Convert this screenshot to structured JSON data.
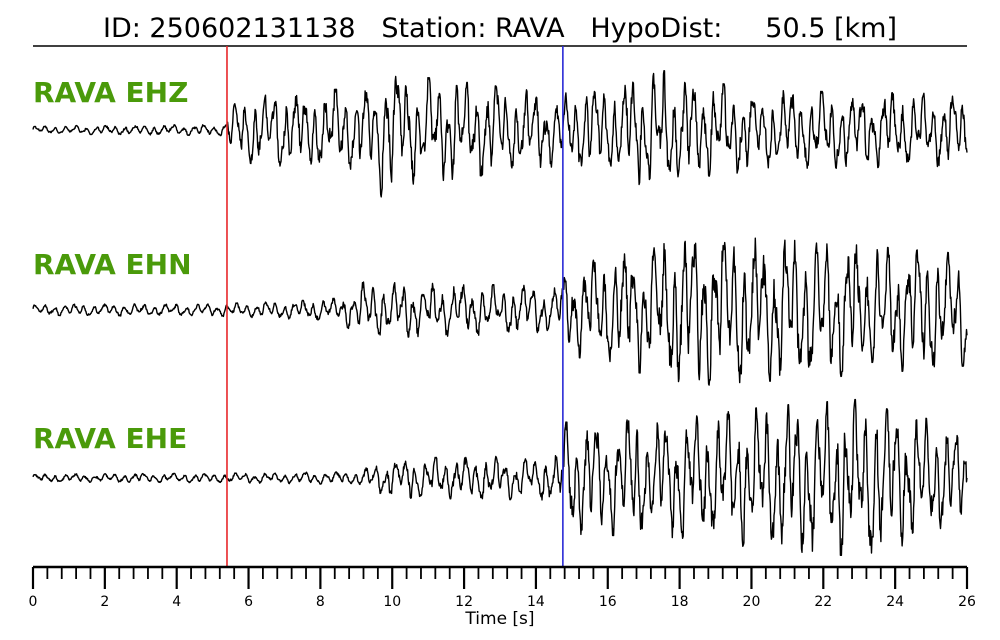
{
  "title": {
    "id": "ID: 250602131138",
    "station": "Station: RAVA",
    "hypodist": "HypoDist:     50.5 [km]"
  },
  "colors": {
    "label": "#4a9a0a",
    "trace": "#000000",
    "p_pick": "#e8262a",
    "s_pick": "#2a2ad6"
  },
  "chart_data": {
    "type": "line",
    "xlabel": "Time [s]",
    "xlim": [
      0,
      26
    ],
    "x_ticks": [
      "0",
      "2",
      "4",
      "6",
      "8",
      "10",
      "12",
      "14",
      "16",
      "18",
      "20",
      "22",
      "24",
      "26"
    ],
    "minor_tick_step": 0.4,
    "picks": [
      {
        "phase": "P",
        "time": 5.4,
        "color": "#e8262a"
      },
      {
        "phase": "S",
        "time": 14.75,
        "color": "#2a2ad6"
      }
    ],
    "series": [
      {
        "name": "RAVA EHZ",
        "envelope": [
          {
            "t": 0.0,
            "amp": 0.05
          },
          {
            "t": 5.3,
            "amp": 0.07
          },
          {
            "t": 5.5,
            "amp": 0.4
          },
          {
            "t": 9.5,
            "amp": 0.55
          },
          {
            "t": 9.8,
            "amp": 1.0
          },
          {
            "t": 10.2,
            "amp": 0.7
          },
          {
            "t": 14.7,
            "amp": 0.45
          },
          {
            "t": 17.5,
            "amp": 0.75
          },
          {
            "t": 20.0,
            "amp": 0.5
          },
          {
            "t": 26.0,
            "amp": 0.45
          }
        ]
      },
      {
        "name": "RAVA EHN",
        "envelope": [
          {
            "t": 0.0,
            "amp": 0.07
          },
          {
            "t": 5.3,
            "amp": 0.08
          },
          {
            "t": 7.5,
            "amp": 0.12
          },
          {
            "t": 8.5,
            "amp": 0.15
          },
          {
            "t": 9.2,
            "amp": 0.35
          },
          {
            "t": 14.6,
            "amp": 0.3
          },
          {
            "t": 14.8,
            "amp": 0.55
          },
          {
            "t": 16.5,
            "amp": 0.75
          },
          {
            "t": 18.5,
            "amp": 0.95
          },
          {
            "t": 22.0,
            "amp": 0.85
          },
          {
            "t": 26.0,
            "amp": 0.7
          }
        ]
      },
      {
        "name": "RAVA EHE",
        "envelope": [
          {
            "t": 0.0,
            "amp": 0.05
          },
          {
            "t": 5.3,
            "amp": 0.06
          },
          {
            "t": 9.0,
            "amp": 0.08
          },
          {
            "t": 10.0,
            "amp": 0.25
          },
          {
            "t": 14.6,
            "amp": 0.28
          },
          {
            "t": 14.8,
            "amp": 0.7
          },
          {
            "t": 18.0,
            "amp": 0.75
          },
          {
            "t": 20.5,
            "amp": 0.9
          },
          {
            "t": 23.4,
            "amp": 1.0
          },
          {
            "t": 26.0,
            "amp": 0.55
          }
        ]
      }
    ]
  }
}
